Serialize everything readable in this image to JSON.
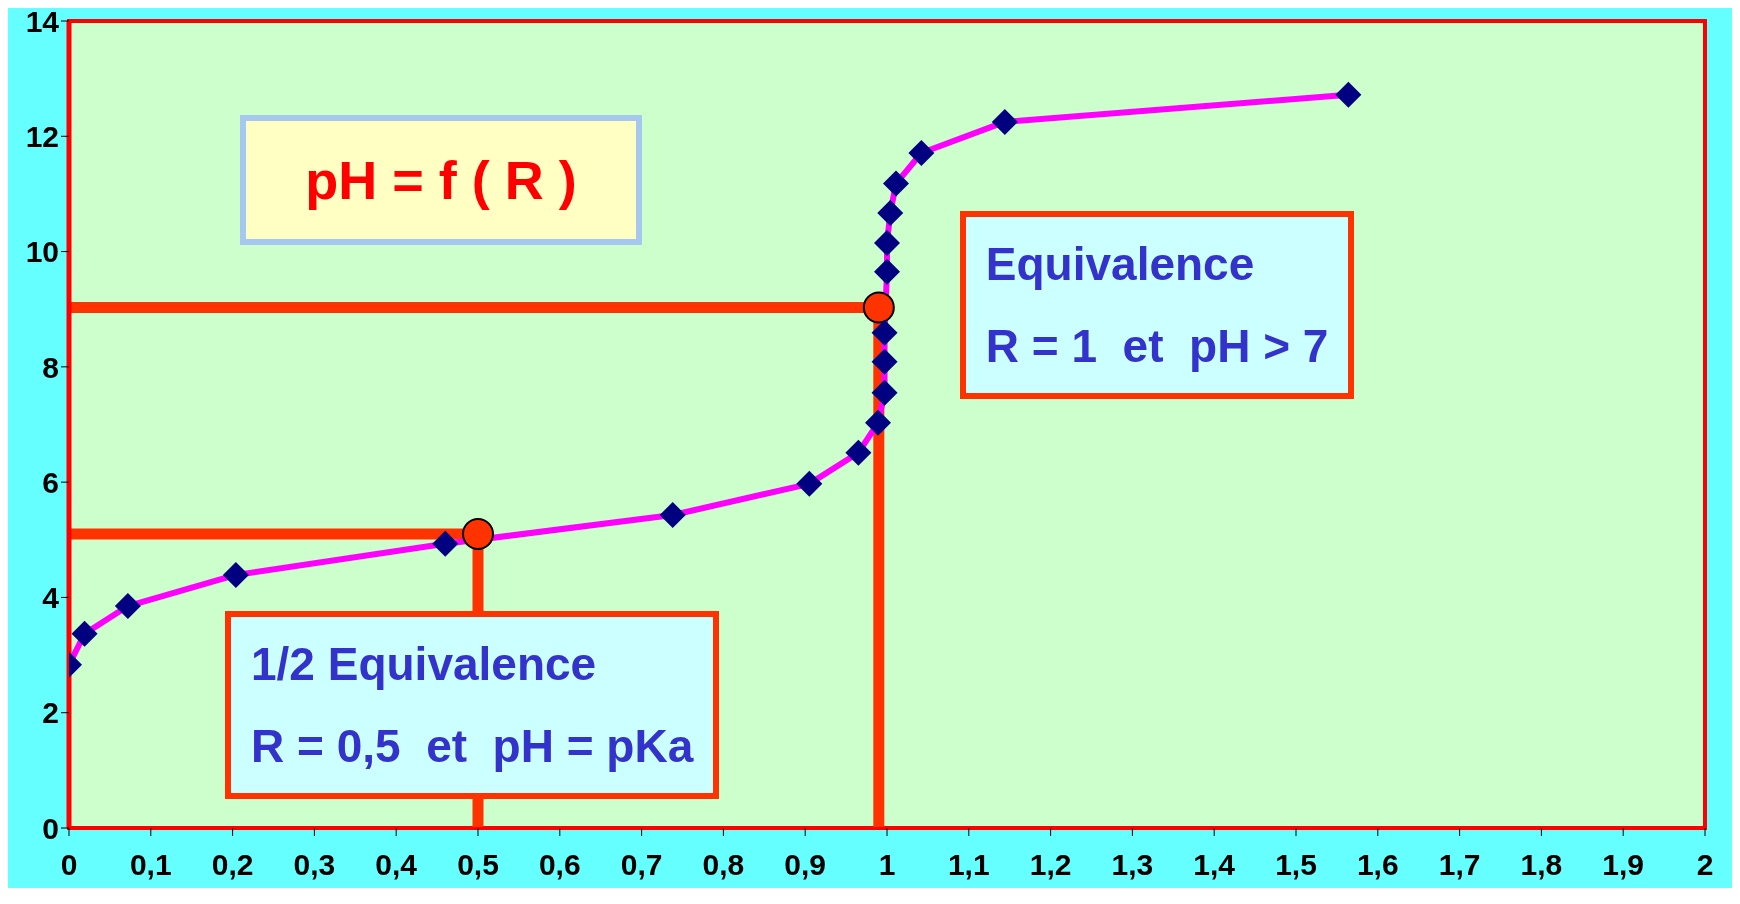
{
  "chart_data": {
    "type": "line",
    "title": "pH = f ( R )",
    "xlim": [
      0,
      2
    ],
    "ylim": [
      0,
      14
    ],
    "xticks": [
      0,
      {
        "value": 0.1,
        "label": "0,1"
      },
      {
        "value": 0.2,
        "label": "0,2"
      },
      {
        "value": 0.3,
        "label": "0,3"
      },
      {
        "value": 0.4,
        "label": "0,4"
      },
      {
        "value": 0.5,
        "label": "0,5"
      },
      {
        "value": 0.6,
        "label": "0,6"
      },
      {
        "value": 0.7,
        "label": "0,7"
      },
      {
        "value": 0.8,
        "label": "0,8"
      },
      {
        "value": 0.9,
        "label": "0,9"
      },
      1,
      {
        "value": 1.1,
        "label": "1,1"
      },
      {
        "value": 1.2,
        "label": "1,2"
      },
      {
        "value": 1.3,
        "label": "1,3"
      },
      {
        "value": 1.4,
        "label": "1,4"
      },
      {
        "value": 1.5,
        "label": "1,5"
      },
      {
        "value": 1.6,
        "label": "1,6"
      },
      {
        "value": 1.7,
        "label": "1,7"
      },
      {
        "value": 1.8,
        "label": "1,8"
      },
      {
        "value": 1.9,
        "label": "1,9"
      },
      2
    ],
    "yticks": [
      0,
      2,
      4,
      6,
      8,
      10,
      12,
      14
    ],
    "series": [
      {
        "color": "#ff00ff",
        "marker": "diamond",
        "colors": [
          "#000080",
          "#000080",
          "#000080",
          "#000080",
          "#000080",
          "#000080",
          "#000080",
          "#000080",
          "#000080",
          "#000080",
          "#000080",
          "#000080",
          "#000080",
          "#000080",
          "#000080",
          "#000080",
          "#000080",
          "#000080",
          "#000080",
          "#000080"
        ],
        "x": [
          0,
          0.019,
          0.072,
          0.204,
          0.46,
          0.738,
          0.905,
          0.965,
          0.989,
          0.997,
          0.997,
          0.997,
          0.999,
          1.0,
          1.0,
          1.004,
          1.011,
          1.042,
          1.144,
          1.564
        ],
        "values": [
          2.83,
          3.37,
          3.85,
          4.39,
          4.93,
          5.43,
          5.97,
          6.51,
          7.03,
          7.55,
          8.09,
          8.59,
          null,
          9.65,
          10.15,
          10.67,
          11.18,
          11.71,
          12.25,
          12.72
        ]
      },
      {
        "color": "#ff3300",
        "marker": "none",
        "x": [
          0,
          0.5,
          0.5
        ],
        "values": [
          5.1,
          5.1,
          0
        ]
      },
      {
        "color": "#ff3300",
        "marker": "none",
        "x": [
          0,
          0.99,
          0.99
        ],
        "values": [
          9.03,
          9.03,
          0
        ]
      },
      {
        "type": "scatter",
        "color": "#ff3300",
        "marker": "circle",
        "x": [
          0.5,
          0.99
        ],
        "values": [
          5.1,
          9.03
        ]
      }
    ],
    "annotations": [
      {
        "text": "1/2 Equivalence\nR = 0,5  et  pH = pKa",
        "x": 0.5,
        "y": 5.1
      },
      {
        "text": "Equivalence\nR = 1  et  pH > 7",
        "x": 0.99,
        "y": 9.03
      }
    ]
  }
}
